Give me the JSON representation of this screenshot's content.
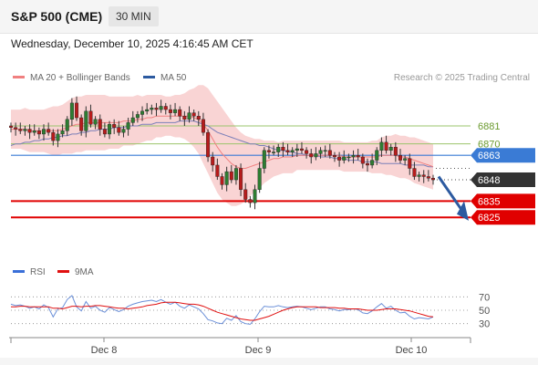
{
  "header": {
    "title": "S&P 500 (CME)",
    "interval": "30 MIN",
    "datetime": "Wednesday, December 10, 2025 4:16:45 AM CET"
  },
  "legend": {
    "ma20_label": "MA 20 + Bollinger Bands",
    "ma50_label": "MA 50",
    "credit": "Research © 2025 Trading Central"
  },
  "rsi_legend": {
    "rsi_label": "RSI",
    "ma_label": "9MA"
  },
  "colors": {
    "bull_candle": "#2e7d32",
    "bear_candle": "#b71c1c",
    "bollinger_fill": "#f7c6c6",
    "ma20": "#f08080",
    "ma50": "#7b7fb8",
    "pivot": "#3a7bd5",
    "resistance": "#9bc46b",
    "support": "#e00000",
    "current_price": "#333333",
    "forecast_arrow": "#2c5aa0",
    "rsi": "#6a8fd8",
    "rsi_ma": "#e01010"
  },
  "chart_data": {
    "type": "candlestick",
    "interval": "30 MIN",
    "xlabels": [
      "Dec 8",
      "Dec 9",
      "Dec 10"
    ],
    "ylim": [
      6800,
      6905
    ],
    "levels": [
      {
        "label": "6881",
        "value": 6881,
        "kind": "resistance"
      },
      {
        "label": "6870",
        "value": 6870,
        "kind": "resistance"
      },
      {
        "label": "6863",
        "value": 6863,
        "kind": "pivot"
      },
      {
        "label": "6848",
        "value": 6848,
        "kind": "current"
      },
      {
        "label": "6835",
        "value": 6835,
        "kind": "support"
      },
      {
        "label": "6825",
        "value": 6825,
        "kind": "support"
      }
    ],
    "close_series": [
      6880,
      6879,
      6878,
      6879,
      6877,
      6878,
      6876,
      6879,
      6877,
      6872,
      6876,
      6878,
      6885,
      6895,
      6886,
      6878,
      6890,
      6882,
      6885,
      6879,
      6876,
      6882,
      6880,
      6877,
      6879,
      6883,
      6886,
      6888,
      6890,
      6891,
      6892,
      6891,
      6893,
      6891,
      6889,
      6891,
      6887,
      6885,
      6889,
      6887,
      6885,
      6877,
      6862,
      6857,
      6850,
      6845,
      6853,
      6848,
      6855,
      6842,
      6836,
      6834,
      6842,
      6855,
      6866,
      6865,
      6865,
      6868,
      6866,
      6865,
      6866,
      6867,
      6866,
      6864,
      6862,
      6864,
      6866,
      6866,
      6863,
      6862,
      6860,
      6862,
      6862,
      6863,
      6862,
      6858,
      6857,
      6860,
      6866,
      6871,
      6866,
      6868,
      6863,
      6860,
      6861,
      6855,
      6850,
      6851,
      6850,
      6849,
      6848
    ],
    "ma20": [
      6879,
      6879,
      6879,
      6879,
      6878,
      6878,
      6878,
      6878,
      6878,
      6878,
      6878,
      6879,
      6880,
      6881,
      6882,
      6882,
      6883,
      6883,
      6883,
      6883,
      6883,
      6883,
      6883,
      6883,
      6884,
      6884,
      6884,
      6885,
      6885,
      6886,
      6886,
      6887,
      6887,
      6887,
      6887,
      6887,
      6887,
      6887,
      6887,
      6886,
      6885,
      6882,
      6878,
      6873,
      6868,
      6864,
      6861,
      6858,
      6856,
      6855,
      6855,
      6856,
      6857,
      6858,
      6859,
      6860,
      6861,
      6861,
      6862,
      6862,
      6862,
      6863,
      6863,
      6863,
      6863,
      6863,
      6863,
      6863,
      6863,
      6863,
      6863,
      6862,
      6862,
      6862,
      6862,
      6862,
      6862,
      6862,
      6862,
      6863,
      6863,
      6863,
      6863,
      6862,
      6862,
      6861,
      6860,
      6859,
      6858,
      6857,
      6856
    ],
    "ma50": [
      6869,
      6870,
      6870,
      6871,
      6871,
      6872,
      6872,
      6873,
      6873,
      6874,
      6874,
      6875,
      6875,
      6876,
      6876,
      6877,
      6877,
      6878,
      6878,
      6879,
      6879,
      6879,
      6880,
      6880,
      6880,
      6881,
      6881,
      6881,
      6882,
      6882,
      6882,
      6883,
      6883,
      6883,
      6883,
      6883,
      6884,
      6884,
      6884,
      6884,
      6883,
      6882,
      6881,
      6879,
      6877,
      6876,
      6875,
      6874,
      6873,
      6872,
      6871,
      6870,
      6870,
      6869,
      6869,
      6868,
      6867,
      6866,
      6866,
      6865,
      6865,
      6864,
      6864,
      6863,
      6863,
      6863,
      6862,
      6862,
      6862,
      6861,
      6861,
      6861,
      6860,
      6860,
      6860,
      6859,
      6859,
      6859,
      6859,
      6858,
      6858,
      6858,
      6858,
      6858,
      6857,
      6857,
      6857,
      6857,
      6857,
      6856,
      6856
    ],
    "bollinger_width": [
      12,
      12,
      12,
      13,
      13,
      13,
      13,
      13,
      14,
      15,
      15,
      15,
      16,
      17,
      17,
      17,
      17,
      17,
      17,
      17,
      17,
      16,
      16,
      16,
      15,
      15,
      15,
      15,
      14,
      14,
      14,
      13,
      13,
      12,
      12,
      13,
      13,
      14,
      16,
      18,
      21,
      24,
      26,
      27,
      28,
      28,
      27,
      26,
      24,
      22,
      20,
      18,
      16,
      15,
      13,
      12,
      11,
      10,
      10,
      10,
      10,
      9,
      9,
      9,
      9,
      9,
      9,
      9,
      9,
      9,
      9,
      9,
      9,
      9,
      9,
      9,
      9,
      10,
      10,
      11,
      12,
      12,
      13,
      13,
      13,
      13,
      14,
      14,
      14,
      14,
      14
    ],
    "rsi": {
      "ylim": [
        20,
        80
      ],
      "ticks": [
        "70",
        "50",
        "30"
      ],
      "levels": [
        70,
        50,
        30
      ],
      "values": [
        59,
        57,
        58,
        56,
        53,
        55,
        52,
        58,
        54,
        40,
        52,
        54,
        66,
        72,
        55,
        49,
        63,
        53,
        56,
        50,
        47,
        54,
        51,
        48,
        51,
        56,
        59,
        61,
        63,
        64,
        65,
        63,
        66,
        62,
        59,
        62,
        56,
        53,
        58,
        55,
        52,
        45,
        36,
        34,
        31,
        30,
        38,
        35,
        42,
        33,
        30,
        29,
        37,
        48,
        56,
        55,
        55,
        57,
        55,
        54,
        55,
        56,
        55,
        53,
        51,
        53,
        55,
        55,
        52,
        51,
        49,
        51,
        51,
        52,
        51,
        46,
        45,
        49,
        55,
        60,
        53,
        56,
        50,
        46,
        47,
        41,
        37,
        39,
        38,
        37,
        40
      ],
      "ma9": [
        55,
        55,
        56,
        56,
        55,
        55,
        55,
        55,
        55,
        53,
        53,
        52,
        54,
        56,
        56,
        55,
        56,
        56,
        57,
        57,
        56,
        55,
        54,
        53,
        53,
        52,
        53,
        54,
        55,
        57,
        58,
        59,
        61,
        62,
        62,
        62,
        61,
        60,
        59,
        59,
        58,
        56,
        53,
        50,
        47,
        45,
        43,
        41,
        39,
        37,
        36,
        35,
        35,
        37,
        39,
        41,
        44,
        47,
        50,
        52,
        54,
        55,
        55,
        55,
        55,
        55,
        54,
        54,
        54,
        54,
        53,
        53,
        52,
        52,
        52,
        51,
        50,
        50,
        50,
        51,
        52,
        52,
        52,
        51,
        50,
        49,
        47,
        45,
        43,
        41,
        40
      ]
    }
  }
}
